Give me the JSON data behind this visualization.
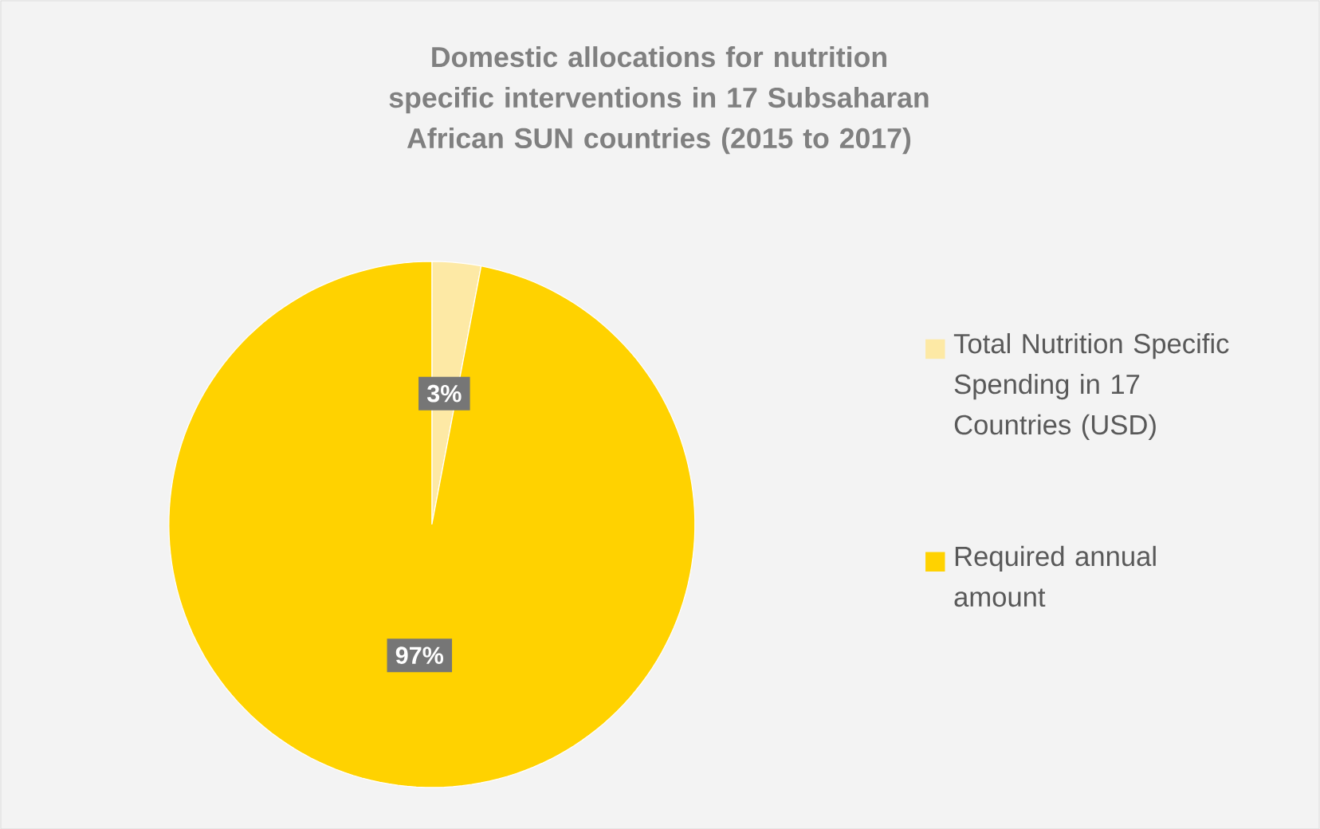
{
  "chart_data": {
    "type": "pie",
    "title": "Domestic allocations for nutrition specific interventions in 17 Subsaharan African SUN countries  (2015 to 2017)",
    "categories": [
      "Total Nutrition Specific Spending in 17 Countries (USD)",
      "Required annual amount"
    ],
    "values": [
      3,
      97
    ],
    "colors": [
      "#fde9a5",
      "#ffd200"
    ],
    "value_labels": [
      "3%",
      "97%"
    ],
    "legend": "right"
  }
}
